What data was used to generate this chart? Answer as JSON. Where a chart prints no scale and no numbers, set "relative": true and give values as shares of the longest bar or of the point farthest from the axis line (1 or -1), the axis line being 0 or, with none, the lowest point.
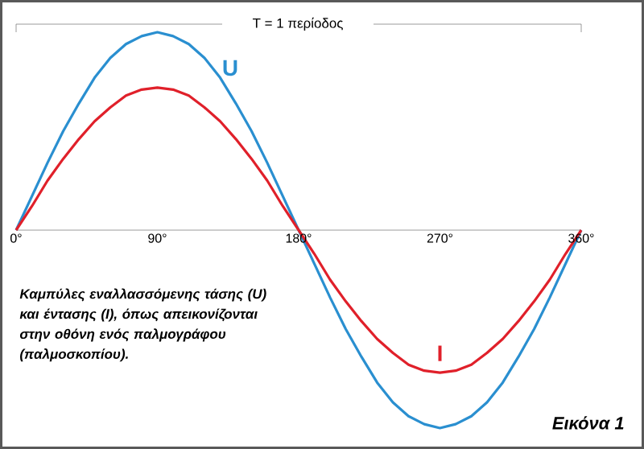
{
  "chart_data": {
    "type": "line",
    "relative": true,
    "x": [
      0,
      10,
      20,
      30,
      40,
      50,
      60,
      70,
      80,
      90,
      100,
      110,
      120,
      130,
      140,
      150,
      160,
      170,
      180,
      190,
      200,
      210,
      220,
      230,
      240,
      250,
      260,
      270,
      280,
      290,
      300,
      310,
      320,
      330,
      340,
      350,
      360
    ],
    "xlim": [
      0,
      360
    ],
    "xticks": [
      {
        "value": 0,
        "label": "0°"
      },
      {
        "value": 90,
        "label": "90°"
      },
      {
        "value": 180,
        "label": "180°"
      },
      {
        "value": 270,
        "label": "270°"
      },
      {
        "value": 360,
        "label": "360°"
      }
    ],
    "series": [
      {
        "name": "U",
        "color": "#2a8fd0",
        "values": [
          0,
          0.17,
          0.34,
          0.5,
          0.64,
          0.77,
          0.87,
          0.94,
          0.98,
          1,
          0.98,
          0.94,
          0.87,
          0.77,
          0.64,
          0.5,
          0.34,
          0.17,
          0,
          -0.17,
          -0.34,
          -0.5,
          -0.64,
          -0.77,
          -0.87,
          -0.94,
          -0.98,
          -1,
          -0.98,
          -0.94,
          -0.87,
          -0.77,
          -0.64,
          -0.5,
          -0.34,
          -0.17,
          0
        ]
      },
      {
        "name": "I",
        "color": "#e0202a",
        "values": [
          0,
          0.12,
          0.25,
          0.36,
          0.46,
          0.55,
          0.62,
          0.68,
          0.71,
          0.72,
          0.71,
          0.68,
          0.62,
          0.55,
          0.46,
          0.36,
          0.25,
          0.12,
          0,
          -0.12,
          -0.25,
          -0.36,
          -0.46,
          -0.55,
          -0.62,
          -0.68,
          -0.71,
          -0.72,
          -0.71,
          -0.68,
          -0.62,
          -0.55,
          -0.46,
          -0.36,
          -0.25,
          -0.12,
          0
        ]
      }
    ],
    "annotations": [
      "T = 1 περίοδος",
      "Καμπύλες εναλλασσόμενης τάσης (U) και έντασης (I), όπως απεικονίζονται στην οθόνη ενός παλμογράφου (παλμοσκοπίου).",
      "Εικόνα 1"
    ]
  }
}
